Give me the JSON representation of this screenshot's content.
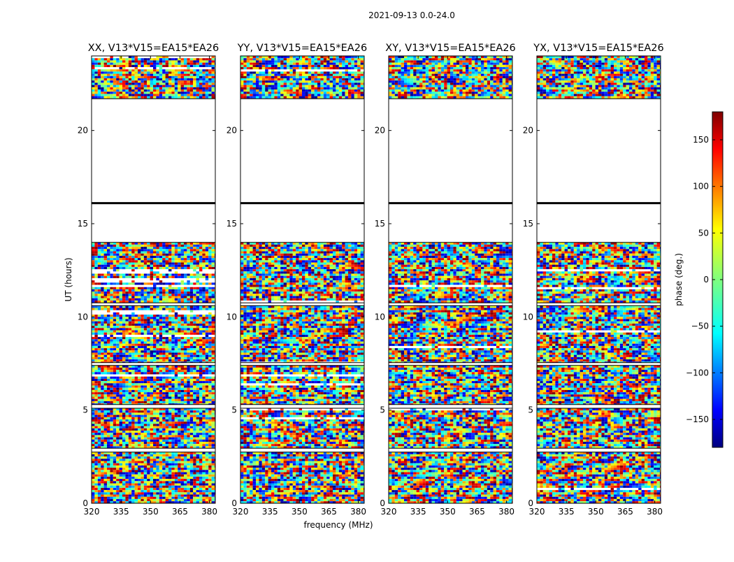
{
  "chart_data": {
    "type": "heatmap",
    "suptitle": "2021-09-13 0.0-24.0",
    "xlabel": "frequency (MHz)",
    "ylabel": "UT (hours)",
    "xlim": [
      320,
      383
    ],
    "ylim": [
      0,
      24
    ],
    "x_ticks": [
      320,
      335,
      350,
      365,
      380
    ],
    "y_ticks": [
      0,
      5,
      10,
      15,
      20
    ],
    "panels": [
      {
        "title": "XX, V13*V15=EA15*EA26"
      },
      {
        "title": "YY, V13*V15=EA15*EA26"
      },
      {
        "title": "XY, V13*V15=EA15*EA26"
      },
      {
        "title": "YX, V13*V15=EA15*EA26"
      }
    ],
    "data_bands_hours": [
      [
        0.0,
        2.75
      ],
      [
        2.95,
        5.1
      ],
      [
        5.3,
        7.4
      ],
      [
        7.55,
        10.6
      ],
      [
        10.75,
        14.0
      ],
      [
        21.7,
        24.0
      ]
    ],
    "blank_gaps_hours": [
      [
        14.0,
        16.05
      ],
      [
        16.2,
        21.7
      ]
    ],
    "colorbar": {
      "label": "phase (deg.)",
      "range": [
        -180,
        180
      ],
      "ticks": [
        -150,
        -100,
        -50,
        0,
        50,
        100,
        150
      ],
      "tick_labels": [
        "−150",
        "−100",
        "−50",
        "0",
        "50",
        "100",
        "150"
      ],
      "colormap": "jet",
      "colors": [
        "#00007f",
        "#0000ff",
        "#007fff",
        "#00ffff",
        "#7fff7f",
        "#ffff00",
        "#ff7f00",
        "#ff0000",
        "#7f0000"
      ]
    }
  }
}
